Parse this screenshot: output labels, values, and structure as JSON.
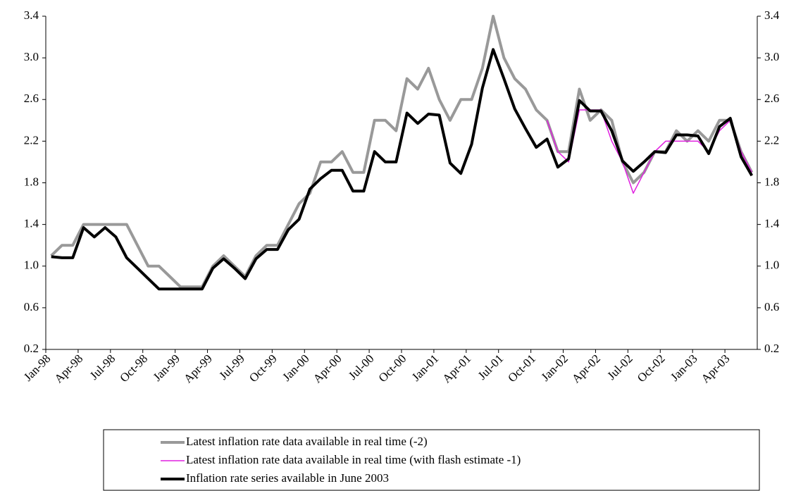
{
  "chart_data": {
    "type": "line",
    "categories": [
      "Jan-98",
      null,
      null,
      "Apr-98",
      null,
      null,
      "Jul-98",
      null,
      null,
      "Oct-98",
      null,
      null,
      "Jan-99",
      null,
      null,
      "Apr-99",
      null,
      null,
      "Jul-99",
      null,
      null,
      "Oct-99",
      null,
      null,
      "Jan-00",
      null,
      null,
      "Apr-00",
      null,
      null,
      "Jul-00",
      null,
      null,
      "Oct-00",
      null,
      null,
      "Jan-01",
      null,
      null,
      "Apr-01",
      null,
      null,
      "Jul-01",
      null,
      null,
      "Oct-01",
      null,
      null,
      "Jan-02",
      null,
      null,
      "Apr-02",
      null,
      null,
      "Jul-02",
      null,
      null,
      "Oct-02",
      null,
      null,
      "Jan-03",
      null,
      null,
      "Apr-03",
      null,
      null
    ],
    "series": [
      {
        "name": "Latest inflation rate data available in real time (-2)",
        "color": "#999999",
        "width": 4,
        "values": [
          1.1,
          1.2,
          1.2,
          1.4,
          1.4,
          1.4,
          1.4,
          1.4,
          1.2,
          1.0,
          1.0,
          0.9,
          0.8,
          0.8,
          0.8,
          1.0,
          1.1,
          1.0,
          0.9,
          1.1,
          1.2,
          1.2,
          1.4,
          1.6,
          1.7,
          2.0,
          2.0,
          2.1,
          1.9,
          1.9,
          2.4,
          2.4,
          2.3,
          2.8,
          2.7,
          2.9,
          2.6,
          2.4,
          2.6,
          2.6,
          2.9,
          3.4,
          3.0,
          2.8,
          2.7,
          2.5,
          2.4,
          2.1,
          2.1,
          2.7,
          2.4,
          2.5,
          2.4,
          2.0,
          1.8,
          1.9,
          2.1,
          2.1,
          2.3,
          2.2,
          2.3,
          2.2,
          2.4,
          2.4,
          2.1,
          1.9
        ]
      },
      {
        "name": "Latest inflation rate data available in real time (with flash estimate -1)",
        "color": "#e020e0",
        "width": 1.5,
        "values": [
          null,
          null,
          null,
          null,
          null,
          null,
          null,
          null,
          null,
          null,
          null,
          null,
          null,
          null,
          null,
          null,
          null,
          null,
          null,
          null,
          null,
          null,
          null,
          null,
          null,
          null,
          null,
          null,
          null,
          null,
          null,
          null,
          null,
          null,
          null,
          null,
          null,
          null,
          null,
          null,
          null,
          null,
          null,
          null,
          null,
          null,
          2.4,
          2.1,
          2.0,
          2.5,
          2.5,
          2.5,
          2.2,
          2.0,
          1.7,
          1.9,
          2.1,
          2.2,
          2.2,
          2.2,
          2.2,
          2.1,
          2.3,
          2.4,
          2.1,
          1.9
        ]
      },
      {
        "name": "Inflation rate series available in June 2003",
        "color": "#000000",
        "width": 4,
        "values": [
          1.09,
          1.08,
          1.08,
          1.37,
          1.28,
          1.37,
          1.28,
          1.08,
          0.98,
          0.88,
          0.78,
          0.78,
          0.78,
          0.78,
          0.78,
          0.98,
          1.07,
          0.98,
          0.88,
          1.07,
          1.16,
          1.16,
          1.35,
          1.45,
          1.74,
          1.84,
          1.92,
          1.92,
          1.72,
          1.72,
          2.1,
          2.0,
          2.0,
          2.47,
          2.37,
          2.46,
          2.45,
          1.99,
          1.89,
          2.17,
          2.71,
          3.08,
          2.8,
          2.51,
          2.32,
          2.14,
          2.22,
          1.95,
          2.03,
          2.59,
          2.49,
          2.49,
          2.3,
          2.01,
          1.91,
          2.0,
          2.1,
          2.09,
          2.26,
          2.26,
          2.25,
          2.08,
          2.34,
          2.42,
          2.05,
          1.87
        ]
      }
    ],
    "ylim": [
      0.2,
      3.4
    ],
    "yticks": [
      0.2,
      0.6,
      {
        "value": 1.0,
        "label": "1.0"
      },
      1.4,
      1.8,
      2.2,
      2.6,
      {
        "value": 3.0,
        "label": "3.0"
      },
      3.4
    ],
    "y2lim": [
      0.2,
      3.4
    ],
    "y2ticks": [
      0.2,
      0.6,
      {
        "value": 1.0,
        "label": "1.0"
      },
      1.4,
      1.8,
      2.2,
      2.6,
      {
        "value": 3.0,
        "label": "3.0"
      },
      3.4
    ],
    "legend": "bottom",
    "grid": false
  }
}
